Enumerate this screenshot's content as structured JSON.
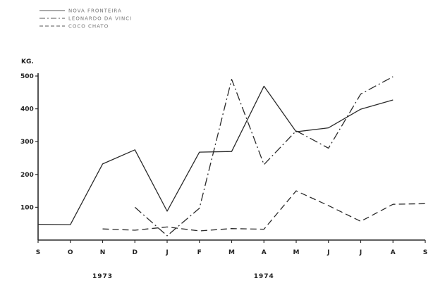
{
  "chart_data": {
    "type": "line",
    "ylabel": "KG.",
    "ylim": [
      0,
      500
    ],
    "yticks": [
      100,
      200,
      300,
      400,
      500
    ],
    "x": [
      "S",
      "O",
      "N",
      "D",
      "J",
      "F",
      "M",
      "A",
      "M",
      "J",
      "J",
      "A",
      "S"
    ],
    "years": [
      {
        "label": "1973",
        "under": 2
      },
      {
        "label": "1974",
        "under": 7
      }
    ],
    "legend": {
      "position": "top-left"
    },
    "series": [
      {
        "name": "NOVA FRONTEIRA",
        "style": "solid",
        "values": [
          48,
          47,
          232,
          275,
          88,
          268,
          270,
          469,
          330,
          342,
          399,
          427,
          null
        ]
      },
      {
        "name": "LEONARDO DA VINCI",
        "style": "dashdot",
        "values": [
          null,
          null,
          null,
          100,
          13,
          97,
          490,
          230,
          333,
          280,
          445,
          498,
          null
        ]
      },
      {
        "name": "COCO CHATO",
        "style": "dashed",
        "values": [
          null,
          null,
          34,
          30,
          40,
          28,
          35,
          33,
          150,
          105,
          57,
          109,
          111
        ]
      }
    ],
    "color": "#2a2a2a"
  }
}
